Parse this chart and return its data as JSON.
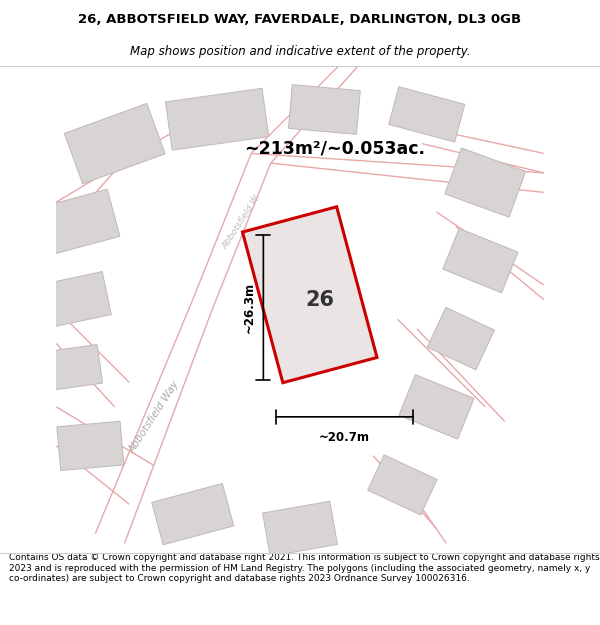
{
  "title": "26, ABBOTSFIELD WAY, FAVERDALE, DARLINGTON, DL3 0GB",
  "subtitle": "Map shows position and indicative extent of the property.",
  "footer": "Contains OS data © Crown copyright and database right 2021. This information is subject to Crown copyright and database rights 2023 and is reproduced with the permission of HM Land Registry. The polygons (including the associated geometry, namely x, y co-ordinates) are subject to Crown copyright and database rights 2023 Ordnance Survey 100026316.",
  "area_text": "~213m²/~0.053ac.",
  "label_number": "26",
  "dim_width": "~20.7m",
  "dim_height": "~26.3m",
  "road_label_lower": "Abbotsfield Way",
  "road_label_upper": "Abbotsfield W...",
  "title_fontsize": 9.5,
  "subtitle_fontsize": 8.5,
  "footer_fontsize": 6.5,
  "road_color": "#e8a8a8",
  "building_fill": "#d8d4d4",
  "building_edge": "#c0b8b8",
  "map_bg": "#f7f2f2",
  "property_fill": "#eae4e4",
  "property_edge": "#cc0000"
}
